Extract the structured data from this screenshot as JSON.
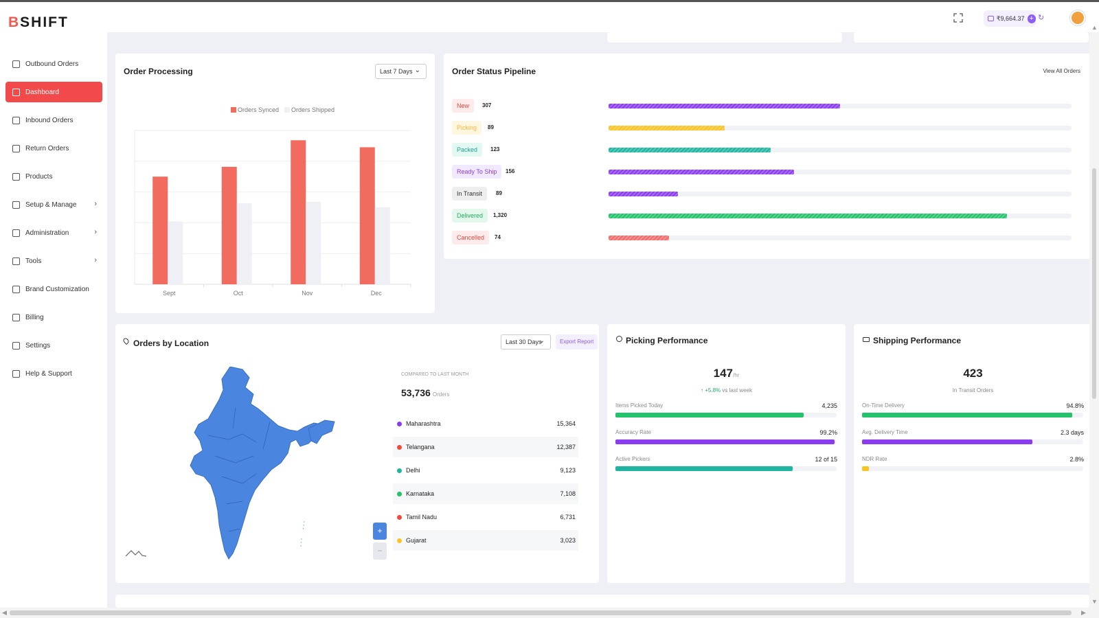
{
  "brand": {
    "logo_b": "B",
    "logo_rest": "SHIFT"
  },
  "header": {
    "wallet_balance": "₹9,664.37",
    "wallet_add": "+",
    "refresh_glyph": "↻"
  },
  "sidebar": {
    "items": [
      {
        "label": "Outbound Orders",
        "icon": "outbound-icon",
        "chevron": ""
      },
      {
        "label": "Dashboard",
        "icon": "dashboard-icon",
        "chevron": "",
        "active": true
      },
      {
        "label": "Inbound Orders",
        "icon": "inbound-icon",
        "chevron": ""
      },
      {
        "label": "Return Orders",
        "icon": "return-icon",
        "chevron": ""
      },
      {
        "label": "Products",
        "icon": "box-icon",
        "chevron": ""
      },
      {
        "label": "Setup & Manage",
        "icon": "setup-icon",
        "chevron": "›"
      },
      {
        "label": "Administration",
        "icon": "admin-icon",
        "chevron": "›"
      },
      {
        "label": "Tools",
        "icon": "tools-icon",
        "chevron": "›"
      },
      {
        "label": "Brand Customization",
        "icon": "brand-icon",
        "chevron": ""
      },
      {
        "label": "Billing",
        "icon": "billing-icon",
        "chevron": ""
      },
      {
        "label": "Settings",
        "icon": "settings-icon",
        "chevron": ""
      },
      {
        "label": "Help & Support",
        "icon": "help-icon",
        "chevron": ""
      }
    ]
  },
  "order_processing": {
    "title": "Order Processing",
    "range": "Last 7 Days",
    "chart_data": {
      "type": "bar",
      "categories": [
        "Sept",
        "Oct",
        "Nov",
        "Dec"
      ],
      "series": [
        {
          "name": "Orders Synced",
          "values": [
            77,
            84,
            103,
            98
          ],
          "color": "#f26b5f"
        },
        {
          "name": "Orders Shipped",
          "values": [
            45,
            58,
            59,
            55
          ],
          "color": "#eef0f6"
        }
      ],
      "ylim": [
        0,
        110
      ],
      "grid": true,
      "legend": "top"
    }
  },
  "pipeline": {
    "title": "Order Status Pipeline",
    "view_all": "View All Orders",
    "rows": [
      {
        "label": "New",
        "count": "307",
        "fraction": 0.5,
        "color": "#8b3cf0",
        "pill_bg": "#fdeaea",
        "pill_fg": "#e0473f"
      },
      {
        "label": "Picking",
        "count": "89",
        "fraction": 0.25,
        "color": "#f7c325",
        "pill_bg": "#fff6e0",
        "pill_fg": "#f2b63c"
      },
      {
        "label": "Packed",
        "count": "123",
        "fraction": 0.35,
        "color": "#1fb5a1",
        "pill_bg": "#e3f7f3",
        "pill_fg": "#1fa58f"
      },
      {
        "label": "Ready To Ship",
        "count": "156",
        "fraction": 0.4,
        "color": "#8b3cf0",
        "pill_bg": "#f1e9ff",
        "pill_fg": "#8b3cf0"
      },
      {
        "label": "In Transit",
        "count": "89",
        "fraction": 0.15,
        "color": "#8b3cf0",
        "pill_bg": "#eeeeee",
        "pill_fg": "#333333"
      },
      {
        "label": "Delivered",
        "count": "1,320",
        "fraction": 0.86,
        "color": "#22c36a",
        "pill_bg": "#e3f7ec",
        "pill_fg": "#22b05e"
      },
      {
        "label": "Cancelled",
        "count": "74",
        "fraction": 0.13,
        "color": "#f26b6b",
        "pill_bg": "#fdeaea",
        "pill_fg": "#e0473f"
      }
    ]
  },
  "location": {
    "title": "Orders by Location",
    "range": "Last 30 Days",
    "export": "Export Report",
    "compared": "COMPARED TO LAST MONTH",
    "total": "53,736",
    "total_unit": "Orders",
    "zoom_in": "+",
    "zoom_out": "−",
    "rows": [
      {
        "state": "Maharashtra",
        "value": "15,364",
        "color": "#8b3cf0"
      },
      {
        "state": "Telangana",
        "value": "12,387",
        "color": "#f04a3f"
      },
      {
        "state": "Delhi",
        "value": "9,123",
        "color": "#1fb5a1"
      },
      {
        "state": "Karnataka",
        "value": "7,108",
        "color": "#22c36a"
      },
      {
        "state": "Tamil Nadu",
        "value": "6,731",
        "color": "#f04a3f"
      },
      {
        "state": "Gujarat",
        "value": "3,023",
        "color": "#f7c325"
      }
    ]
  },
  "picking": {
    "title": "Picking Performance",
    "big_value": "147",
    "big_unit": "/hr",
    "trend": "↑ +5.8%",
    "trend_suffix": "vs last week",
    "metrics": [
      {
        "label": "Items Picked Today",
        "value": "4,235",
        "fraction": 0.85,
        "color": "#22c36a"
      },
      {
        "label": "Accuracy Rate",
        "value": "99.2%",
        "fraction": 0.99,
        "color": "#8b3cf0"
      },
      {
        "label": "Active Pickers",
        "value": "12 of 15",
        "fraction": 0.8,
        "color": "#1fb5a1"
      }
    ]
  },
  "shipping": {
    "title": "Shipping Performance",
    "big_value": "423",
    "big_caption": "In Transit Orders",
    "metrics": [
      {
        "label": "On-Time Delivery",
        "value": "94.8%",
        "fraction": 0.95,
        "color": "#22c36a"
      },
      {
        "label": "Avg. Delivery Time",
        "value": "2.3 days",
        "fraction": 0.77,
        "color": "#8b3cf0"
      },
      {
        "label": "NDR Rate",
        "value": "2.8%",
        "fraction": 0.03,
        "color": "#f7c325"
      }
    ]
  }
}
